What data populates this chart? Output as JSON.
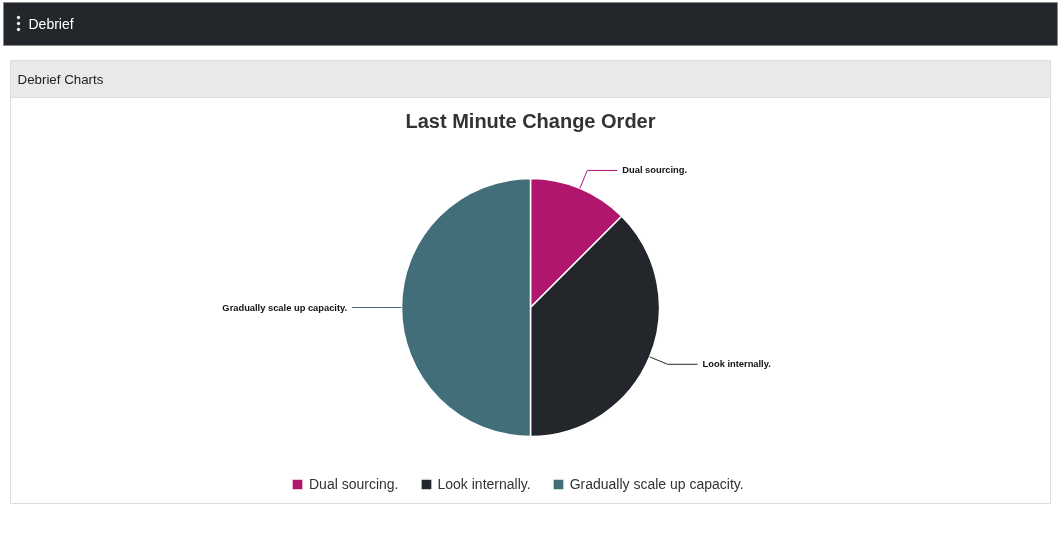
{
  "chart_data": {
    "type": "pie",
    "title": "Last Minute Change Order",
    "annotations": [
      "Debrief",
      "Debrief Charts"
    ],
    "categories": [
      "Dual sourcing.",
      "Look internally.",
      "Gradually scale up capacity."
    ],
    "values": [
      12.5,
      37.5,
      50
    ],
    "colors": [
      "#b0166e",
      "#23272b",
      "#416e79"
    ],
    "legend": "bottom"
  }
}
